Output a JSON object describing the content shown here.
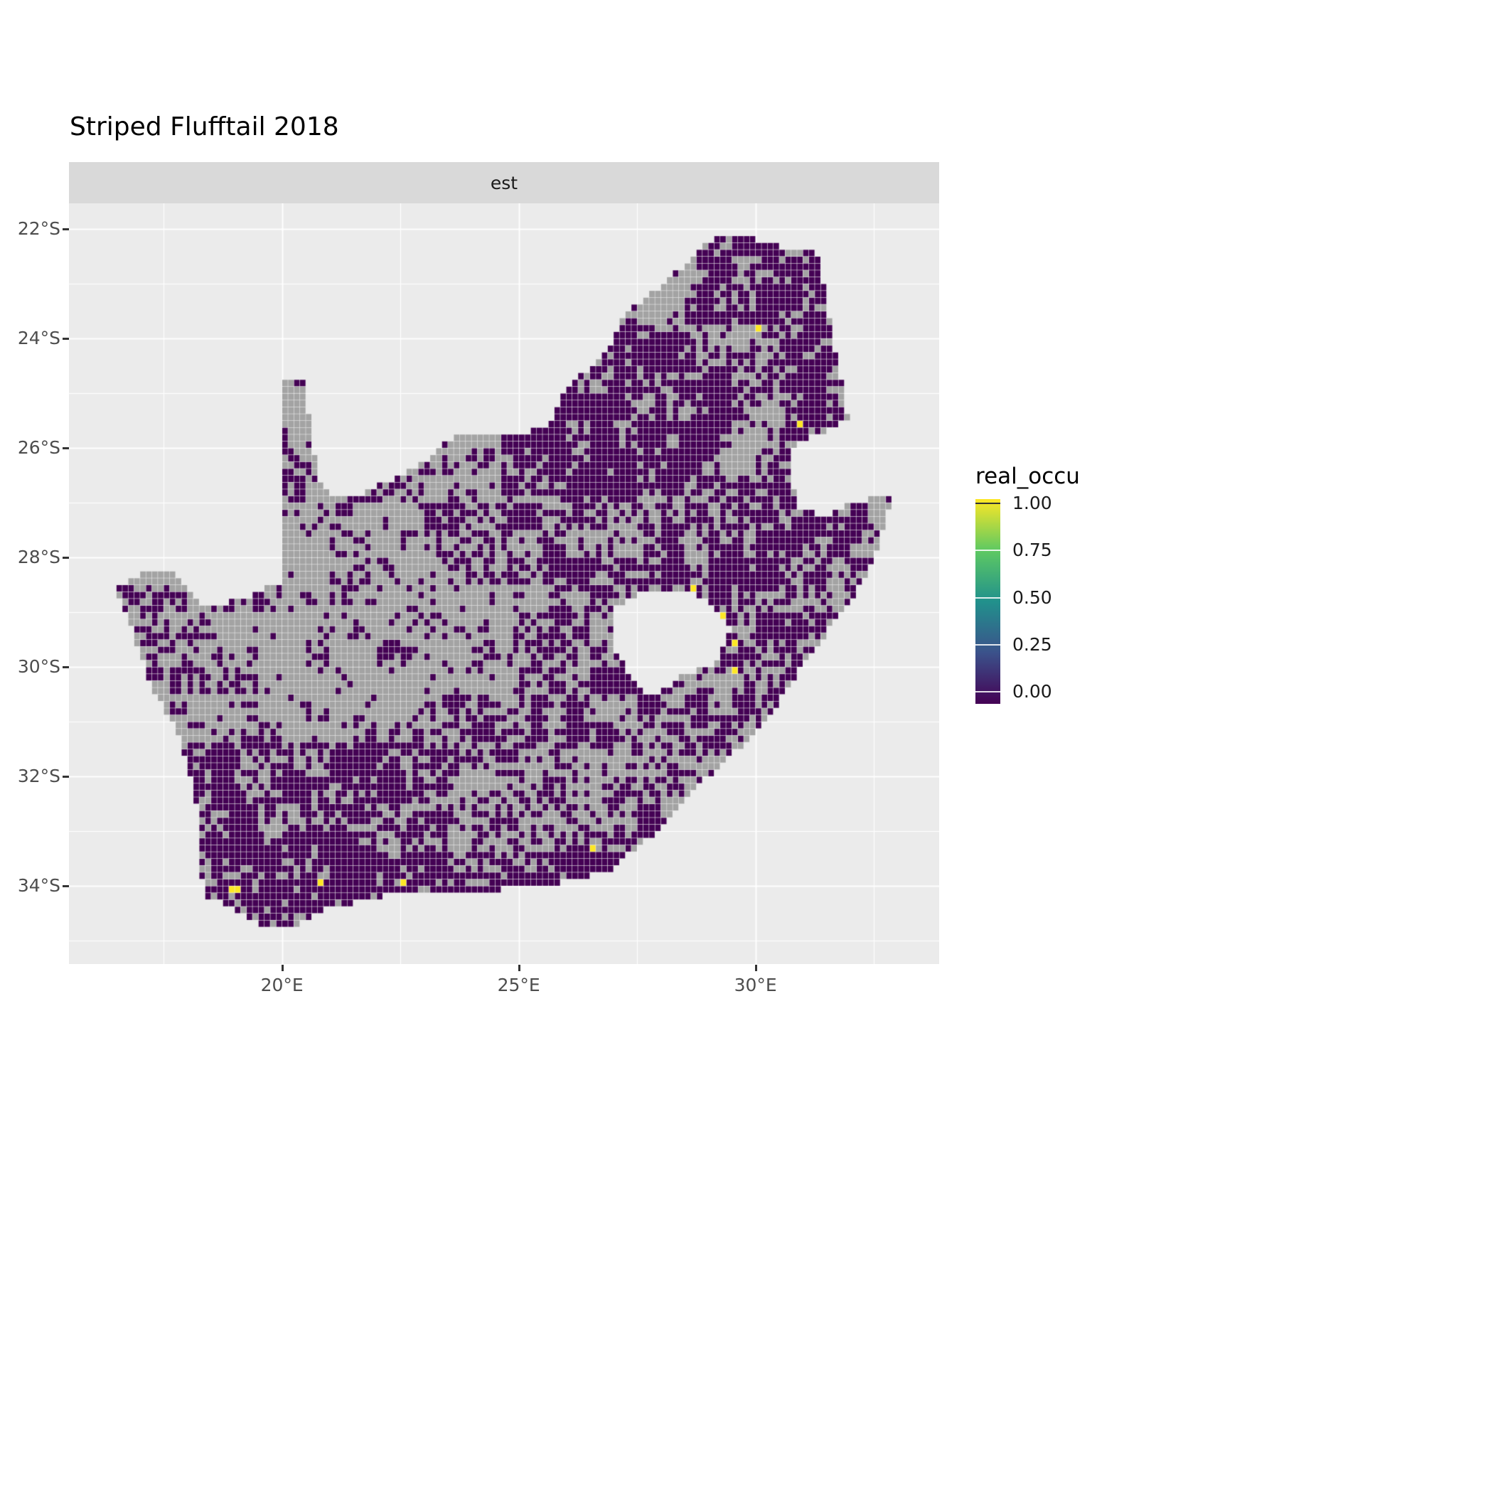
{
  "page": {
    "title": "Striped Flufftail 2018"
  },
  "facet": {
    "label": "est"
  },
  "legend": {
    "title": "real_occu",
    "labels": [
      "1.00",
      "0.75",
      "0.50",
      "0.25",
      "0.00"
    ]
  },
  "chart_data": {
    "type": "heatmap",
    "subtype": "raster-occupancy-map",
    "region": "South Africa",
    "title": "Striped Flufftail 2018",
    "facet_label": "est",
    "legend_title": "real_occu",
    "legend_breaks": [
      1.0,
      0.75,
      0.5,
      0.25,
      0.0
    ],
    "panel_bg": "#EBEBEB",
    "strip_bg": "#D9D9D9",
    "gridline_color": "#FFFFFF",
    "value_colors": {
      "0": "#440154",
      "1": "#FDE725",
      "na": "#A3A3A3"
    },
    "viridis_stops": [
      {
        "v": 0.0,
        "color": "#440154"
      },
      {
        "v": 0.25,
        "color": "#3B528B"
      },
      {
        "v": 0.5,
        "color": "#21918C"
      },
      {
        "v": 0.75,
        "color": "#5EC962"
      },
      {
        "v": 1.0,
        "color": "#FDE725"
      }
    ],
    "x_axis": {
      "ticks": [
        {
          "label": "20°E",
          "lon": 20
        },
        {
          "label": "25°E",
          "lon": 25
        },
        {
          "label": "30°E",
          "lon": 30
        }
      ],
      "minor": [
        17.5,
        22.5,
        27.5,
        32.5
      ],
      "domain": [
        15.5,
        33.88
      ]
    },
    "y_axis": {
      "ticks": [
        {
          "label": "22°S",
          "lat": -22
        },
        {
          "label": "24°S",
          "lat": -24
        },
        {
          "label": "26°S",
          "lat": -26
        },
        {
          "label": "28°S",
          "lat": -28
        },
        {
          "label": "30°S",
          "lat": -30
        },
        {
          "label": "32°S",
          "lat": -32
        },
        {
          "label": "34°S",
          "lat": -34
        }
      ],
      "minor": [
        -23,
        -25,
        -27,
        -29,
        -31,
        -33,
        -35
      ],
      "domain": [
        -35.43,
        -21.53
      ]
    },
    "cell_size_deg": 0.125,
    "cell_values": {
      "surveyed_absent": 0.0,
      "surveyed_present": 1.0,
      "no_data": "NA (grey)"
    },
    "boundary": [
      [
        16.45,
        -28.6
      ],
      [
        17.05,
        -28.25
      ],
      [
        17.75,
        -28.25
      ],
      [
        18.3,
        -28.9
      ],
      [
        19.2,
        -28.75
      ],
      [
        19.98,
        -28.45
      ],
      [
        19.98,
        -24.77
      ],
      [
        20.45,
        -24.8
      ],
      [
        20.65,
        -25.9
      ],
      [
        20.85,
        -26.8
      ],
      [
        21.7,
        -26.85
      ],
      [
        22.9,
        -26.3
      ],
      [
        23.7,
        -25.75
      ],
      [
        24.75,
        -25.8
      ],
      [
        25.6,
        -25.6
      ],
      [
        26.0,
        -24.9
      ],
      [
        26.85,
        -24.25
      ],
      [
        27.2,
        -23.6
      ],
      [
        28.2,
        -22.9
      ],
      [
        29.05,
        -22.2
      ],
      [
        29.7,
        -22.13
      ],
      [
        30.45,
        -22.3
      ],
      [
        31.3,
        -22.4
      ],
      [
        31.55,
        -23.5
      ],
      [
        31.75,
        -24.5
      ],
      [
        31.98,
        -25.5
      ],
      [
        31.3,
        -25.75
      ],
      [
        30.8,
        -26.0
      ],
      [
        30.78,
        -26.6
      ],
      [
        30.95,
        -27.1
      ],
      [
        31.5,
        -27.3
      ],
      [
        31.97,
        -27.0
      ],
      [
        32.9,
        -26.86
      ],
      [
        32.55,
        -27.95
      ],
      [
        32.0,
        -28.8
      ],
      [
        31.05,
        -29.9
      ],
      [
        30.25,
        -30.95
      ],
      [
        29.45,
        -31.65
      ],
      [
        28.6,
        -32.3
      ],
      [
        27.9,
        -33.03
      ],
      [
        26.9,
        -33.72
      ],
      [
        25.65,
        -33.98
      ],
      [
        25.0,
        -34.02
      ],
      [
        24.0,
        -34.15
      ],
      [
        23.0,
        -34.1
      ],
      [
        22.15,
        -34.18
      ],
      [
        21.0,
        -34.4
      ],
      [
        20.0,
        -34.82
      ],
      [
        19.3,
        -34.62
      ],
      [
        18.85,
        -34.37
      ],
      [
        18.43,
        -34.2
      ],
      [
        18.3,
        -33.9
      ],
      [
        18.25,
        -32.7
      ],
      [
        18.05,
        -32.0
      ],
      [
        17.85,
        -31.3
      ],
      [
        17.2,
        -30.3
      ],
      [
        16.95,
        -29.6
      ],
      [
        16.5,
        -28.65
      ]
    ],
    "lesotho_hole": [
      [
        27.05,
        -28.9
      ],
      [
        27.6,
        -28.6
      ],
      [
        28.6,
        -28.6
      ],
      [
        29.15,
        -28.9
      ],
      [
        29.45,
        -29.3
      ],
      [
        29.15,
        -29.95
      ],
      [
        28.45,
        -30.15
      ],
      [
        27.75,
        -30.6
      ],
      [
        27.35,
        -30.15
      ],
      [
        27.0,
        -29.6
      ]
    ],
    "presence_cells": [
      [
        30.05,
        -23.85
      ],
      [
        30.9,
        -25.62
      ],
      [
        28.72,
        -28.52
      ],
      [
        29.33,
        -29.05
      ],
      [
        29.5,
        -29.6
      ],
      [
        29.62,
        -30.1
      ],
      [
        26.62,
        -33.28
      ],
      [
        22.55,
        -33.95
      ],
      [
        20.82,
        -33.95
      ],
      [
        18.98,
        -34.05
      ],
      [
        19.1,
        -34.12
      ]
    ],
    "coverage_base_density": 0.32,
    "coverage_regions": [
      {
        "lon": [
          19.5,
          25.2
        ],
        "lat": [
          -32.8,
          -27.6
        ],
        "density": 0.22
      },
      {
        "lon": [
          20.0,
          26.5
        ],
        "lat": [
          -27.6,
          -25.2
        ],
        "density": 0.3
      },
      {
        "lon": [
          16.4,
          19.5
        ],
        "lat": [
          -31.8,
          -28.0
        ],
        "density": 0.35
      },
      {
        "lon": [
          17.8,
          22.6
        ],
        "lat": [
          -34.9,
          -31.4
        ],
        "density": 0.72
      },
      {
        "lon": [
          18.5,
          27.8
        ],
        "lat": [
          -34.9,
          -33.4
        ],
        "density": 0.85
      },
      {
        "lon": [
          22.8,
          28.2
        ],
        "lat": [
          -33.4,
          -30.5
        ],
        "density": 0.5
      },
      {
        "lon": [
          24.8,
          29.6
        ],
        "lat": [
          -30.5,
          -26.9
        ],
        "density": 0.52
      },
      {
        "lon": [
          24.6,
          31.2
        ],
        "lat": [
          -26.9,
          -23.2
        ],
        "density": 0.88
      },
      {
        "lon": [
          28.5,
          30.3
        ],
        "lat": [
          -24.7,
          -23.8
        ],
        "density": 0.3
      },
      {
        "lon": [
          29.9,
          30.8
        ],
        "lat": [
          -25.7,
          -24.5
        ],
        "density": 0.45
      },
      {
        "lon": [
          29.3,
          30.8
        ],
        "lat": [
          -26.6,
          -25.7
        ],
        "density": 0.35
      },
      {
        "lon": [
          26.2,
          28.8
        ],
        "lat": [
          -23.8,
          -22.2
        ],
        "density": 0.35
      },
      {
        "lon": [
          28.8,
          31.5
        ],
        "lat": [
          -23.3,
          -22.0
        ],
        "density": 0.8
      },
      {
        "lon": [
          30.8,
          32.2
        ],
        "lat": [
          -25.9,
          -22.4
        ],
        "density": 0.82
      },
      {
        "lon": [
          28.9,
          32.2
        ],
        "lat": [
          -31.3,
          -26.8
        ],
        "density": 0.62
      },
      {
        "lon": [
          26.8,
          30.3
        ],
        "lat": [
          -33.2,
          -30.8
        ],
        "density": 0.55
      },
      {
        "lon": [
          26.3,
          29.2
        ],
        "lat": [
          -30.9,
          -28.2
        ],
        "density": 0.6
      }
    ],
    "notes": "Dark purple raster cells = estimated occupancy 0.00; yellow cells = 1.00; grey cells = no data (NA); white hole = Lesotho; notch on east border = Eswatini."
  }
}
